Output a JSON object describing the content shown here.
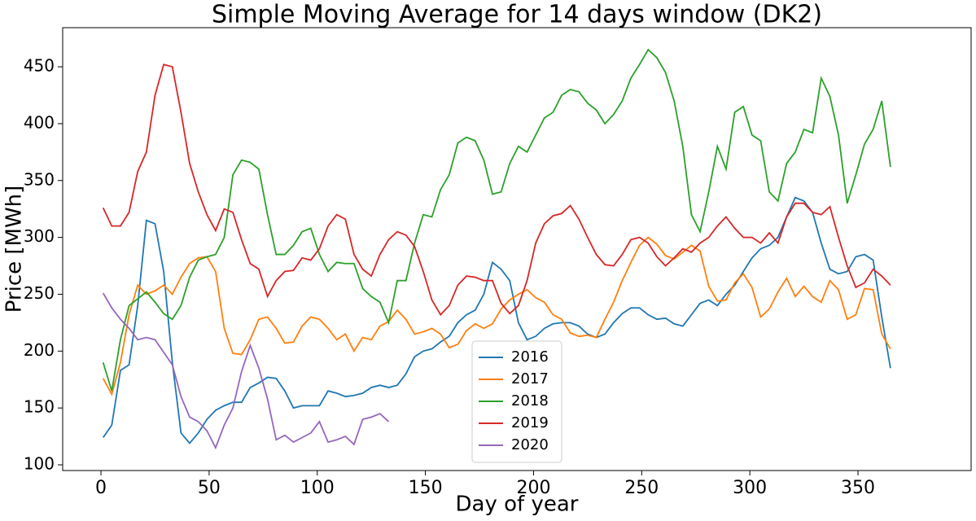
{
  "chart_data": {
    "type": "line",
    "title": "Simple Moving Average for 14 days window (DK2)",
    "x_label": "Day of year",
    "y_label": "Price [MWh]",
    "x": [
      1,
      5,
      9,
      13,
      17,
      21,
      25,
      29,
      33,
      37,
      41,
      45,
      49,
      53,
      57,
      61,
      65,
      69,
      73,
      77,
      81,
      85,
      89,
      93,
      97,
      101,
      105,
      109,
      113,
      117,
      121,
      125,
      129,
      133,
      137,
      141,
      145,
      149,
      153,
      157,
      161,
      165,
      169,
      173,
      177,
      181,
      185,
      189,
      193,
      197,
      201,
      205,
      209,
      213,
      217,
      221,
      225,
      229,
      233,
      237,
      241,
      245,
      249,
      253,
      257,
      261,
      265,
      269,
      273,
      277,
      281,
      285,
      289,
      293,
      297,
      301,
      305,
      309,
      313,
      317,
      321,
      325,
      329,
      333,
      337,
      341,
      345,
      349,
      353,
      357,
      361,
      365
    ],
    "series": [
      {
        "name": "2016",
        "color": "#1f77b4",
        "values": [
          124,
          135,
          183,
          188,
          240,
          315,
          312,
          270,
          190,
          128,
          119,
          128,
          140,
          148,
          152,
          155,
          155,
          168,
          172,
          177,
          176,
          165,
          150,
          152,
          152,
          152,
          165,
          163,
          160,
          161,
          163,
          168,
          170,
          168,
          170,
          180,
          195,
          200,
          202,
          208,
          213,
          225,
          232,
          236,
          250,
          278,
          272,
          262,
          225,
          210,
          213,
          220,
          224,
          225,
          225,
          222,
          215,
          212,
          215,
          225,
          233,
          238,
          238,
          232,
          228,
          229,
          224,
          222,
          232,
          242,
          245,
          240,
          250,
          258,
          270,
          282,
          290,
          293,
          300,
          318,
          335,
          332,
          322,
          295,
          272,
          268,
          270,
          283,
          285,
          280,
          230,
          185
        ]
      },
      {
        "name": "2017",
        "color": "#ff7f0e",
        "values": [
          176,
          162,
          190,
          232,
          258,
          250,
          253,
          258,
          250,
          265,
          277,
          282,
          283,
          270,
          220,
          198,
          197,
          210,
          228,
          230,
          220,
          207,
          208,
          222,
          230,
          228,
          220,
          210,
          215,
          200,
          212,
          210,
          222,
          226,
          236,
          228,
          215,
          217,
          220,
          215,
          203,
          206,
          218,
          224,
          220,
          224,
          237,
          245,
          250,
          254,
          247,
          243,
          232,
          228,
          216,
          213,
          214,
          212,
          228,
          243,
          262,
          278,
          293,
          300,
          294,
          284,
          281,
          287,
          293,
          288,
          257,
          244,
          245,
          260,
          268,
          256,
          230,
          237,
          252,
          264,
          248,
          257,
          248,
          243,
          262,
          254,
          228,
          232,
          255,
          254,
          215,
          202
        ]
      },
      {
        "name": "2018",
        "color": "#2ca02c",
        "values": [
          190,
          165,
          210,
          240,
          246,
          252,
          243,
          233,
          228,
          240,
          265,
          280,
          283,
          285,
          300,
          355,
          368,
          366,
          360,
          320,
          285,
          285,
          293,
          305,
          308,
          285,
          270,
          278,
          277,
          277,
          255,
          248,
          243,
          225,
          262,
          262,
          295,
          320,
          318,
          342,
          355,
          383,
          388,
          385,
          368,
          338,
          340,
          365,
          380,
          375,
          390,
          405,
          410,
          425,
          430,
          428,
          418,
          412,
          400,
          408,
          420,
          440,
          452,
          465,
          458,
          445,
          420,
          380,
          320,
          305,
          340,
          380,
          360,
          410,
          415,
          390,
          385,
          340,
          332,
          365,
          375,
          395,
          392,
          440,
          424,
          390,
          330,
          355,
          382,
          395,
          420,
          362
        ]
      },
      {
        "name": "2019",
        "color": "#d62728",
        "values": [
          326,
          310,
          310,
          322,
          358,
          375,
          425,
          452,
          450,
          410,
          365,
          340,
          320,
          306,
          325,
          322,
          298,
          277,
          272,
          248,
          262,
          270,
          271,
          282,
          280,
          290,
          310,
          320,
          316,
          285,
          272,
          266,
          285,
          298,
          305,
          302,
          292,
          270,
          245,
          232,
          240,
          258,
          266,
          265,
          262,
          262,
          242,
          233,
          240,
          262,
          295,
          312,
          319,
          321,
          328,
          316,
          300,
          285,
          276,
          275,
          285,
          298,
          300,
          295,
          283,
          275,
          282,
          290,
          287,
          295,
          300,
          310,
          318,
          308,
          300,
          300,
          295,
          304,
          295,
          318,
          330,
          330,
          322,
          320,
          327,
          300,
          275,
          256,
          260,
          272,
          266,
          258
        ]
      },
      {
        "name": "2020",
        "color": "#9467bd",
        "values": [
          251,
          238,
          228,
          220,
          210,
          212,
          210,
          199,
          188,
          160,
          142,
          138,
          130,
          115,
          135,
          150,
          182,
          205,
          185,
          158,
          122,
          126,
          120,
          124,
          128,
          138,
          120,
          122,
          125,
          118,
          140,
          142,
          145,
          138,
          null,
          null,
          null,
          null,
          null,
          null,
          null,
          null,
          null,
          null,
          null,
          null,
          null,
          null,
          null,
          null,
          null,
          null,
          null,
          null,
          null,
          null,
          null,
          null,
          null,
          null,
          null,
          null,
          null,
          null,
          null,
          null,
          null,
          null,
          null,
          null,
          null,
          null,
          null,
          null,
          null,
          null,
          null,
          null,
          null,
          null,
          null,
          null,
          null,
          null,
          null,
          null,
          null,
          null,
          null,
          null,
          null,
          null
        ]
      }
    ],
    "xlim": [
      -17.7,
      402.3
    ],
    "ylim": [
      95,
      484.4
    ],
    "xticks": [
      0,
      50,
      100,
      150,
      200,
      250,
      300,
      350
    ],
    "yticks": [
      100,
      150,
      200,
      250,
      300,
      350,
      400,
      450
    ],
    "legend": "lower center"
  }
}
